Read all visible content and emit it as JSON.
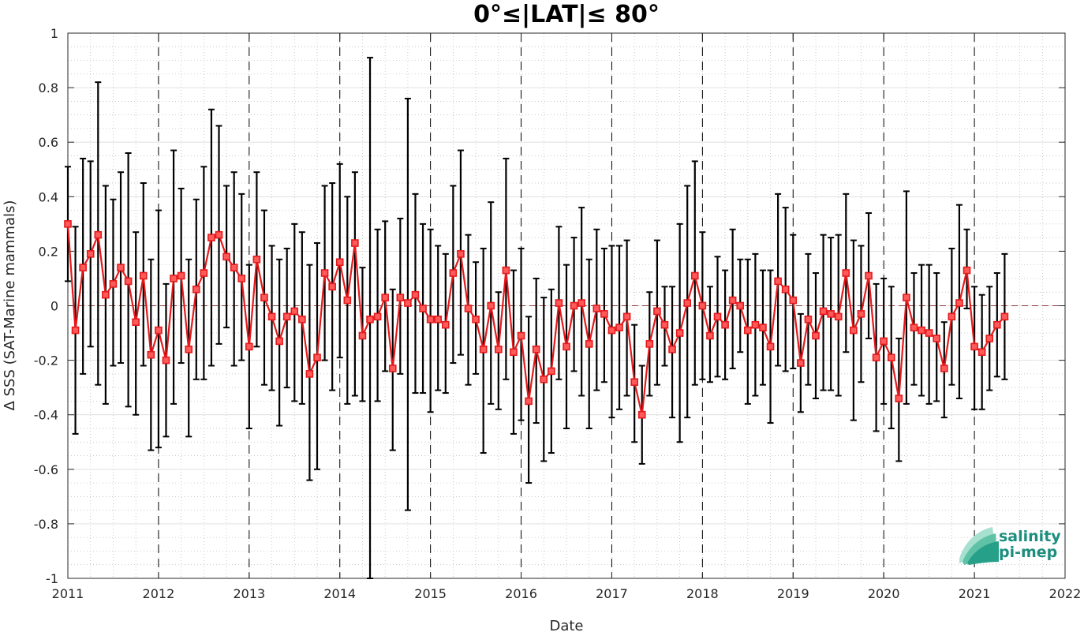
{
  "chart_data": {
    "type": "line",
    "title": "0°≤|LAT|≤ 80°",
    "xlabel": "Date",
    "ylabel": "Δ SSS (SAT-Marine mammals)",
    "xlim": [
      2011,
      2022
    ],
    "ylim": [
      -1,
      1
    ],
    "x_ticks": [
      "2011",
      "2012",
      "2013",
      "2014",
      "2015",
      "2016",
      "2017",
      "2018",
      "2019",
      "2020",
      "2021",
      "2022"
    ],
    "y_ticks": [
      "1",
      "0.8",
      "0.6",
      "0.4",
      "0.2",
      "0",
      "-0.2",
      "-0.4",
      "-0.6",
      "-0.8",
      "-1"
    ],
    "grid": true,
    "year_dividers": "dashed vertical lines at each year",
    "zero_line": "dashed line at y=0 (brown)",
    "series": [
      {
        "color": "#e41a1c",
        "marker": "square",
        "points": [
          {
            "x": "2011-01",
            "y": 0.3,
            "lo": 0.09,
            "hi": 0.51
          },
          {
            "x": "2011-02",
            "y": -0.09,
            "lo": -0.47,
            "hi": 0.29
          },
          {
            "x": "2011-03",
            "y": 0.14,
            "lo": -0.25,
            "hi": 0.54
          },
          {
            "x": "2011-04",
            "y": 0.19,
            "lo": -0.15,
            "hi": 0.53
          },
          {
            "x": "2011-05",
            "y": 0.26,
            "lo": -0.29,
            "hi": 0.82
          },
          {
            "x": "2011-06",
            "y": 0.04,
            "lo": -0.36,
            "hi": 0.44
          },
          {
            "x": "2011-07",
            "y": 0.08,
            "lo": -0.22,
            "hi": 0.39
          },
          {
            "x": "2011-08",
            "y": 0.14,
            "lo": -0.21,
            "hi": 0.49
          },
          {
            "x": "2011-09",
            "y": 0.09,
            "lo": -0.37,
            "hi": 0.56
          },
          {
            "x": "2011-10",
            "y": -0.06,
            "lo": -0.4,
            "hi": 0.27
          },
          {
            "x": "2011-11",
            "y": 0.11,
            "lo": -0.22,
            "hi": 0.45
          },
          {
            "x": "2011-12",
            "y": -0.18,
            "lo": -0.53,
            "hi": 0.17
          },
          {
            "x": "2012-01",
            "y": -0.09,
            "lo": -0.52,
            "hi": 0.35
          },
          {
            "x": "2012-02",
            "y": -0.2,
            "lo": -0.48,
            "hi": 0.08
          },
          {
            "x": "2012-03",
            "y": 0.1,
            "lo": -0.36,
            "hi": 0.57
          },
          {
            "x": "2012-04",
            "y": 0.11,
            "lo": -0.21,
            "hi": 0.43
          },
          {
            "x": "2012-05",
            "y": -0.16,
            "lo": -0.48,
            "hi": 0.17
          },
          {
            "x": "2012-06",
            "y": 0.06,
            "lo": -0.27,
            "hi": 0.39
          },
          {
            "x": "2012-07",
            "y": 0.12,
            "lo": -0.27,
            "hi": 0.51
          },
          {
            "x": "2012-08",
            "y": 0.25,
            "lo": -0.22,
            "hi": 0.72
          },
          {
            "x": "2012-09",
            "y": 0.26,
            "lo": -0.14,
            "hi": 0.66
          },
          {
            "x": "2012-10",
            "y": 0.18,
            "lo": -0.08,
            "hi": 0.44
          },
          {
            "x": "2012-11",
            "y": 0.14,
            "lo": -0.22,
            "hi": 0.49
          },
          {
            "x": "2012-12",
            "y": 0.1,
            "lo": -0.2,
            "hi": 0.41
          },
          {
            "x": "2013-01",
            "y": -0.15,
            "lo": -0.45,
            "hi": 0.15
          },
          {
            "x": "2013-02",
            "y": 0.17,
            "lo": -0.15,
            "hi": 0.49
          },
          {
            "x": "2013-03",
            "y": 0.03,
            "lo": -0.29,
            "hi": 0.35
          },
          {
            "x": "2013-04",
            "y": -0.04,
            "lo": -0.31,
            "hi": 0.22
          },
          {
            "x": "2013-05",
            "y": -0.13,
            "lo": -0.44,
            "hi": 0.17
          },
          {
            "x": "2013-06",
            "y": -0.04,
            "lo": -0.3,
            "hi": 0.21
          },
          {
            "x": "2013-07",
            "y": -0.02,
            "lo": -0.35,
            "hi": 0.3
          },
          {
            "x": "2013-08",
            "y": -0.05,
            "lo": -0.36,
            "hi": 0.27
          },
          {
            "x": "2013-09",
            "y": -0.25,
            "lo": -0.64,
            "hi": 0.15
          },
          {
            "x": "2013-10",
            "y": -0.19,
            "lo": -0.6,
            "hi": 0.23
          },
          {
            "x": "2013-11",
            "y": 0.12,
            "lo": -0.2,
            "hi": 0.44
          },
          {
            "x": "2013-12",
            "y": 0.07,
            "lo": -0.31,
            "hi": 0.45
          },
          {
            "x": "2014-01",
            "y": 0.16,
            "lo": -0.19,
            "hi": 0.52
          },
          {
            "x": "2014-02",
            "y": 0.02,
            "lo": -0.36,
            "hi": 0.4
          },
          {
            "x": "2014-03",
            "y": 0.23,
            "lo": -0.33,
            "hi": 0.49
          },
          {
            "x": "2014-04",
            "y": -0.11,
            "lo": -0.35,
            "hi": 0.14
          },
          {
            "x": "2014-05",
            "y": -0.05,
            "lo": -1.0,
            "hi": 0.91
          },
          {
            "x": "2014-06",
            "y": -0.04,
            "lo": -0.35,
            "hi": 0.28
          },
          {
            "x": "2014-07",
            "y": 0.03,
            "lo": -0.24,
            "hi": 0.31
          },
          {
            "x": "2014-08",
            "y": -0.23,
            "lo": -0.53,
            "hi": 0.06
          },
          {
            "x": "2014-09",
            "y": 0.03,
            "lo": -0.25,
            "hi": 0.32
          },
          {
            "x": "2014-10",
            "y": 0.01,
            "lo": -0.75,
            "hi": 0.76
          },
          {
            "x": "2014-11",
            "y": 0.04,
            "lo": -0.32,
            "hi": 0.41
          },
          {
            "x": "2014-12",
            "y": -0.01,
            "lo": -0.32,
            "hi": 0.3
          },
          {
            "x": "2015-01",
            "y": -0.05,
            "lo": -0.39,
            "hi": 0.28
          },
          {
            "x": "2015-02",
            "y": -0.05,
            "lo": -0.31,
            "hi": 0.22
          },
          {
            "x": "2015-03",
            "y": -0.07,
            "lo": -0.32,
            "hi": 0.19
          },
          {
            "x": "2015-04",
            "y": 0.12,
            "lo": -0.21,
            "hi": 0.44
          },
          {
            "x": "2015-05",
            "y": 0.19,
            "lo": -0.18,
            "hi": 0.57
          },
          {
            "x": "2015-06",
            "y": -0.01,
            "lo": -0.29,
            "hi": 0.26
          },
          {
            "x": "2015-07",
            "y": -0.05,
            "lo": -0.25,
            "hi": 0.16
          },
          {
            "x": "2015-08",
            "y": -0.16,
            "lo": -0.54,
            "hi": 0.21
          },
          {
            "x": "2015-09",
            "y": 0.0,
            "lo": -0.36,
            "hi": 0.38
          },
          {
            "x": "2015-10",
            "y": -0.16,
            "lo": -0.38,
            "hi": 0.05
          },
          {
            "x": "2015-11",
            "y": 0.13,
            "lo": -0.27,
            "hi": 0.54
          },
          {
            "x": "2015-12",
            "y": -0.17,
            "lo": -0.47,
            "hi": 0.13
          },
          {
            "x": "2016-01",
            "y": -0.11,
            "lo": -0.42,
            "hi": 0.21
          },
          {
            "x": "2016-02",
            "y": -0.35,
            "lo": -0.65,
            "hi": -0.04
          },
          {
            "x": "2016-03",
            "y": -0.16,
            "lo": -0.43,
            "hi": 0.1
          },
          {
            "x": "2016-04",
            "y": -0.27,
            "lo": -0.57,
            "hi": 0.03
          },
          {
            "x": "2016-05",
            "y": -0.24,
            "lo": -0.54,
            "hi": 0.06
          },
          {
            "x": "2016-06",
            "y": 0.01,
            "lo": -0.27,
            "hi": 0.29
          },
          {
            "x": "2016-07",
            "y": -0.15,
            "lo": -0.45,
            "hi": 0.15
          },
          {
            "x": "2016-08",
            "y": 0.0,
            "lo": -0.24,
            "hi": 0.25
          },
          {
            "x": "2016-09",
            "y": 0.01,
            "lo": -0.33,
            "hi": 0.36
          },
          {
            "x": "2016-10",
            "y": -0.14,
            "lo": -0.45,
            "hi": 0.17
          },
          {
            "x": "2016-11",
            "y": -0.01,
            "lo": -0.31,
            "hi": 0.28
          },
          {
            "x": "2016-12",
            "y": -0.03,
            "lo": -0.28,
            "hi": 0.21
          },
          {
            "x": "2017-01",
            "y": -0.09,
            "lo": -0.41,
            "hi": 0.22
          },
          {
            "x": "2017-02",
            "y": -0.08,
            "lo": -0.38,
            "hi": 0.22
          },
          {
            "x": "2017-03",
            "y": -0.04,
            "lo": -0.33,
            "hi": 0.24
          },
          {
            "x": "2017-04",
            "y": -0.28,
            "lo": -0.5,
            "hi": -0.07
          },
          {
            "x": "2017-05",
            "y": -0.4,
            "lo": -0.58,
            "hi": -0.22
          },
          {
            "x": "2017-06",
            "y": -0.14,
            "lo": -0.33,
            "hi": 0.05
          },
          {
            "x": "2017-07",
            "y": -0.02,
            "lo": -0.29,
            "hi": 0.24
          },
          {
            "x": "2017-08",
            "y": -0.07,
            "lo": -0.22,
            "hi": 0.07
          },
          {
            "x": "2017-09",
            "y": -0.16,
            "lo": -0.41,
            "hi": 0.07
          },
          {
            "x": "2017-10",
            "y": -0.1,
            "lo": -0.5,
            "hi": 0.3
          },
          {
            "x": "2017-11",
            "y": 0.01,
            "lo": -0.41,
            "hi": 0.44
          },
          {
            "x": "2017-12",
            "y": 0.11,
            "lo": -0.29,
            "hi": 0.53
          },
          {
            "x": "2018-01",
            "y": 0.0,
            "lo": -0.27,
            "hi": 0.27
          },
          {
            "x": "2018-02",
            "y": -0.11,
            "lo": -0.28,
            "hi": 0.07
          },
          {
            "x": "2018-03",
            "y": -0.04,
            "lo": -0.26,
            "hi": 0.18
          },
          {
            "x": "2018-04",
            "y": -0.07,
            "lo": -0.27,
            "hi": 0.13
          },
          {
            "x": "2018-05",
            "y": 0.02,
            "lo": -0.23,
            "hi": 0.28
          },
          {
            "x": "2018-06",
            "y": 0.0,
            "lo": -0.17,
            "hi": 0.17
          },
          {
            "x": "2018-07",
            "y": -0.09,
            "lo": -0.36,
            "hi": 0.17
          },
          {
            "x": "2018-08",
            "y": -0.07,
            "lo": -0.33,
            "hi": 0.19
          },
          {
            "x": "2018-09",
            "y": -0.08,
            "lo": -0.29,
            "hi": 0.13
          },
          {
            "x": "2018-10",
            "y": -0.15,
            "lo": -0.43,
            "hi": 0.13
          },
          {
            "x": "2018-11",
            "y": 0.09,
            "lo": -0.22,
            "hi": 0.41
          },
          {
            "x": "2018-12",
            "y": 0.06,
            "lo": -0.24,
            "hi": 0.36
          },
          {
            "x": "2019-01",
            "y": 0.02,
            "lo": -0.23,
            "hi": 0.26
          },
          {
            "x": "2019-02",
            "y": -0.21,
            "lo": -0.39,
            "hi": -0.03
          },
          {
            "x": "2019-03",
            "y": -0.05,
            "lo": -0.29,
            "hi": 0.19
          },
          {
            "x": "2019-04",
            "y": -0.11,
            "lo": -0.34,
            "hi": 0.12
          },
          {
            "x": "2019-05",
            "y": -0.02,
            "lo": -0.31,
            "hi": 0.26
          },
          {
            "x": "2019-06",
            "y": -0.03,
            "lo": -0.31,
            "hi": 0.25
          },
          {
            "x": "2019-07",
            "y": -0.04,
            "lo": -0.33,
            "hi": 0.26
          },
          {
            "x": "2019-08",
            "y": 0.12,
            "lo": -0.17,
            "hi": 0.41
          },
          {
            "x": "2019-09",
            "y": -0.09,
            "lo": -0.42,
            "hi": 0.24
          },
          {
            "x": "2019-10",
            "y": -0.03,
            "lo": -0.28,
            "hi": 0.22
          },
          {
            "x": "2019-11",
            "y": 0.11,
            "lo": -0.12,
            "hi": 0.34
          },
          {
            "x": "2019-12",
            "y": -0.19,
            "lo": -0.46,
            "hi": 0.08
          },
          {
            "x": "2020-01",
            "y": -0.13,
            "lo": -0.36,
            "hi": 0.1
          },
          {
            "x": "2020-02",
            "y": -0.19,
            "lo": -0.45,
            "hi": 0.07
          },
          {
            "x": "2020-03",
            "y": -0.34,
            "lo": -0.57,
            "hi": -0.12
          },
          {
            "x": "2020-04",
            "y": 0.03,
            "lo": -0.36,
            "hi": 0.42
          },
          {
            "x": "2020-05",
            "y": -0.08,
            "lo": -0.29,
            "hi": 0.12
          },
          {
            "x": "2020-06",
            "y": -0.09,
            "lo": -0.33,
            "hi": 0.15
          },
          {
            "x": "2020-07",
            "y": -0.1,
            "lo": -0.36,
            "hi": 0.15
          },
          {
            "x": "2020-08",
            "y": -0.12,
            "lo": -0.35,
            "hi": 0.12
          },
          {
            "x": "2020-09",
            "y": -0.23,
            "lo": -0.41,
            "hi": -0.06
          },
          {
            "x": "2020-10",
            "y": -0.04,
            "lo": -0.29,
            "hi": 0.21
          },
          {
            "x": "2020-11",
            "y": 0.01,
            "lo": -0.34,
            "hi": 0.37
          },
          {
            "x": "2020-12",
            "y": 0.13,
            "lo": -0.01,
            "hi": 0.28
          },
          {
            "x": "2021-01",
            "y": -0.15,
            "lo": -0.38,
            "hi": 0.07
          },
          {
            "x": "2021-02",
            "y": -0.17,
            "lo": -0.38,
            "hi": 0.04
          },
          {
            "x": "2021-03",
            "y": -0.12,
            "lo": -0.31,
            "hi": 0.07
          },
          {
            "x": "2021-04",
            "y": -0.07,
            "lo": -0.26,
            "hi": 0.12
          },
          {
            "x": "2021-05",
            "y": -0.04,
            "lo": -0.27,
            "hi": 0.19
          }
        ]
      }
    ]
  },
  "logo": {
    "line1": "salinity",
    "line2": "pi-mep",
    "color": "#1c8e7e"
  }
}
